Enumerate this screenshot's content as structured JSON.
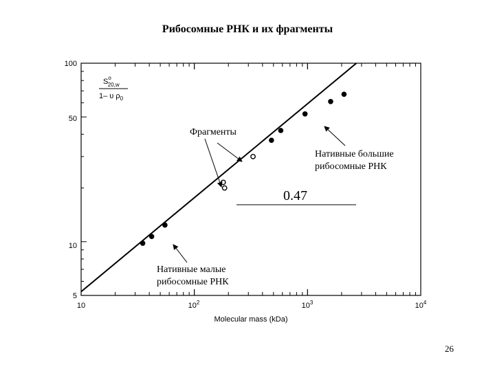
{
  "slide": {
    "title": "Рибосомные РНК и их фрагменты",
    "page_number": "26"
  },
  "chart_data": {
    "type": "scatter",
    "xscale": "log",
    "yscale": "log",
    "xlim": [
      10,
      10000
    ],
    "ylim": [
      5,
      100
    ],
    "xlabel": "Molecular mass (kDa)",
    "ylabel_parts": {
      "numerator": "S",
      "sup": "o",
      "sub": "20,w",
      "denominator": "1– υ ρ",
      "denominator_sub": "0"
    },
    "x_ticks": [
      {
        "base": "10",
        "exp": ""
      },
      {
        "base": "10",
        "exp": "2"
      },
      {
        "base": "10",
        "exp": "3"
      },
      {
        "base": "10",
        "exp": "4"
      }
    ],
    "y_ticks": [
      "100",
      "50",
      "10",
      "5"
    ],
    "series": [
      {
        "marker": "filled",
        "points": [
          [
            35,
            9.8
          ],
          [
            42,
            10.7
          ],
          [
            55,
            12.4
          ],
          [
            480,
            37
          ],
          [
            580,
            42
          ],
          [
            950,
            52
          ],
          [
            1600,
            61
          ],
          [
            2100,
            67
          ]
        ]
      },
      {
        "marker": "open",
        "points": [
          [
            180,
            21.5
          ],
          [
            185,
            20
          ],
          [
            330,
            30
          ]
        ]
      }
    ],
    "fit_line": {
      "points": [
        [
          10,
          5.25
        ],
        [
          2700,
          100
        ]
      ]
    },
    "annotations": [
      {
        "lines": [
          "Фрагменты"
        ]
      },
      {
        "lines": [
          "Нативные большие",
          "рибосомные РНК"
        ]
      },
      {
        "lines": [
          "Нативные малые",
          "рибосомные РНК"
        ]
      },
      {
        "lines": [
          "0.47"
        ]
      }
    ],
    "grid": false
  }
}
